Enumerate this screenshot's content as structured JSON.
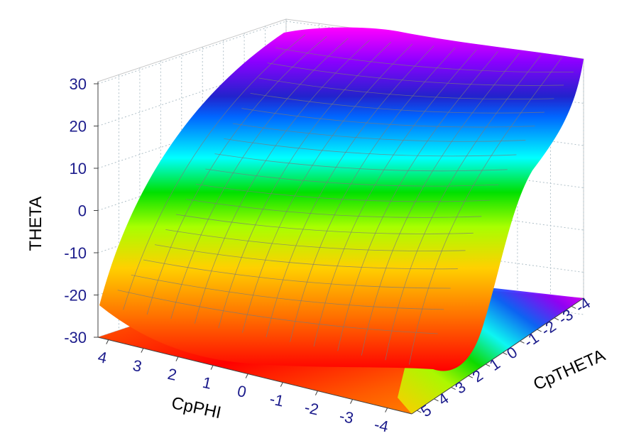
{
  "chart_data": {
    "type": "surface",
    "axes": {
      "z": {
        "label": "THETA",
        "ticks": [
          "30",
          "20",
          "10",
          "0",
          "-10",
          "-20",
          "-30"
        ],
        "range": [
          -30,
          30
        ]
      },
      "x": {
        "label": "CpPHI",
        "ticks": [
          "4",
          "3",
          "2",
          "1",
          "0",
          "-1",
          "-2",
          "-3",
          "-4"
        ],
        "range": [
          -4,
          5
        ]
      },
      "y": {
        "label": "CpTHETA",
        "ticks": [
          "5",
          "4",
          "3",
          "2",
          "1",
          "0",
          "-1",
          "-2",
          "-3",
          "-4"
        ],
        "range": [
          -4,
          5
        ]
      }
    },
    "surface": {
      "description_values": {
        "min_z": -30,
        "max_z": 30
      },
      "colormap": [
        "#ff0000",
        "#ff6a00",
        "#ffd000",
        "#a8ff00",
        "#00e000",
        "#00ffff",
        "#0066ff",
        "#2222cc",
        "#8a00ff",
        "#ff00ff"
      ]
    },
    "grid": true,
    "floor_projection": true
  }
}
